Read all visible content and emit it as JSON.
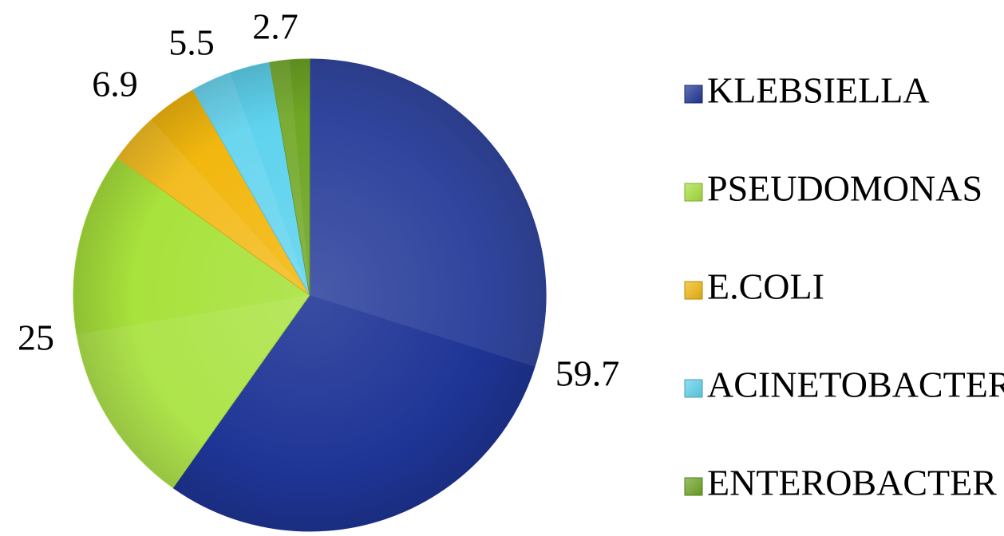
{
  "chart_data": {
    "type": "pie",
    "categories": [
      "KLEBSIELLA",
      "PSEUDOMONAS",
      "E.COLI",
      "ACINETOBACTER",
      "ENTEROBACTER"
    ],
    "values": [
      59.7,
      25,
      6.9,
      5.5,
      2.7
    ],
    "data_labels": [
      "59.7",
      "25",
      "6.9",
      "5.5",
      "2.7"
    ],
    "colors": [
      "#1f3596",
      "#a8e23c",
      "#f2b70f",
      "#5fd3ee",
      "#6fa624"
    ],
    "title": "",
    "start_angle": "12 o'clock",
    "direction": "clockwise",
    "legend_position": "right"
  }
}
